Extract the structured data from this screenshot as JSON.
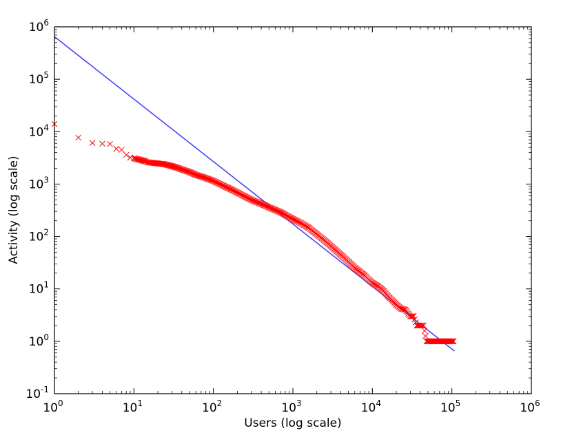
{
  "chart_data": {
    "type": "scatter",
    "title": "",
    "xlabel": "Users (log scale)",
    "ylabel": "Activity (log scale)",
    "xscale": "log",
    "yscale": "log",
    "xlim": [
      1,
      1000000
    ],
    "ylim": [
      0.1,
      1000000
    ],
    "grid": false,
    "x_ticks": [
      {
        "base": "10",
        "exp": "0",
        "value": 1
      },
      {
        "base": "10",
        "exp": "1",
        "value": 10
      },
      {
        "base": "10",
        "exp": "2",
        "value": 100
      },
      {
        "base": "10",
        "exp": "3",
        "value": 1000
      },
      {
        "base": "10",
        "exp": "4",
        "value": 10000
      },
      {
        "base": "10",
        "exp": "5",
        "value": 100000
      },
      {
        "base": "10",
        "exp": "6",
        "value": 1000000
      }
    ],
    "y_ticks": [
      {
        "base": "10",
        "exp": "-1",
        "value": 0.1
      },
      {
        "base": "10",
        "exp": "0",
        "value": 1
      },
      {
        "base": "10",
        "exp": "1",
        "value": 10
      },
      {
        "base": "10",
        "exp": "2",
        "value": 100
      },
      {
        "base": "10",
        "exp": "3",
        "value": 1000
      },
      {
        "base": "10",
        "exp": "4",
        "value": 10000
      },
      {
        "base": "10",
        "exp": "5",
        "value": 100000
      },
      {
        "base": "10",
        "exp": "6",
        "value": 1000000
      }
    ],
    "series": [
      {
        "kind": "scatter",
        "marker": "x",
        "color": "#ff0000",
        "points": [
          [
            1,
            14000
          ],
          [
            2,
            7700
          ],
          [
            3,
            6100
          ],
          [
            4,
            5900
          ],
          [
            5,
            5800
          ],
          [
            6,
            4700
          ],
          [
            7,
            4500
          ],
          [
            8,
            3600
          ],
          [
            9,
            3200
          ],
          [
            10,
            3100
          ],
          [
            11,
            3000
          ],
          [
            12,
            2900
          ],
          [
            13,
            2800
          ],
          [
            14,
            2700
          ],
          [
            15,
            2600
          ],
          [
            17,
            2550
          ],
          [
            19,
            2500
          ],
          [
            21,
            2450
          ],
          [
            24,
            2400
          ],
          [
            27,
            2300
          ],
          [
            30,
            2200
          ],
          [
            35,
            2050
          ],
          [
            40,
            1900
          ],
          [
            50,
            1700
          ],
          [
            60,
            1500
          ],
          [
            75,
            1350
          ],
          [
            100,
            1150
          ],
          [
            130,
            950
          ],
          [
            170,
            780
          ],
          [
            220,
            640
          ],
          [
            300,
            500
          ],
          [
            400,
            420
          ],
          [
            500,
            360
          ],
          [
            700,
            290
          ],
          [
            1000,
            215
          ],
          [
            1300,
            175
          ],
          [
            1600,
            145
          ],
          [
            2000,
            110
          ],
          [
            2600,
            80
          ],
          [
            3300,
            58
          ],
          [
            4200,
            42
          ],
          [
            5000,
            33
          ],
          [
            6000,
            25
          ],
          [
            7000,
            21
          ],
          [
            8000,
            18
          ],
          [
            9000,
            15
          ],
          [
            10000,
            13
          ],
          [
            12000,
            11
          ],
          [
            14000,
            9
          ],
          [
            16000,
            7
          ],
          [
            18000,
            6
          ],
          [
            20000,
            5
          ],
          [
            23000,
            4.2
          ],
          [
            26000,
            4
          ],
          [
            30000,
            3
          ],
          [
            33000,
            3
          ],
          [
            36000,
            2
          ],
          [
            40000,
            2
          ],
          [
            44000,
            2
          ],
          [
            48000,
            1
          ],
          [
            55000,
            1
          ],
          [
            65000,
            1
          ],
          [
            75000,
            1
          ],
          [
            90000,
            1
          ],
          [
            100000,
            1
          ],
          [
            105000,
            1
          ]
        ]
      },
      {
        "kind": "line",
        "color": "#4444ff",
        "points": [
          [
            1,
            650000
          ],
          [
            108000,
            0.65
          ]
        ]
      }
    ]
  }
}
